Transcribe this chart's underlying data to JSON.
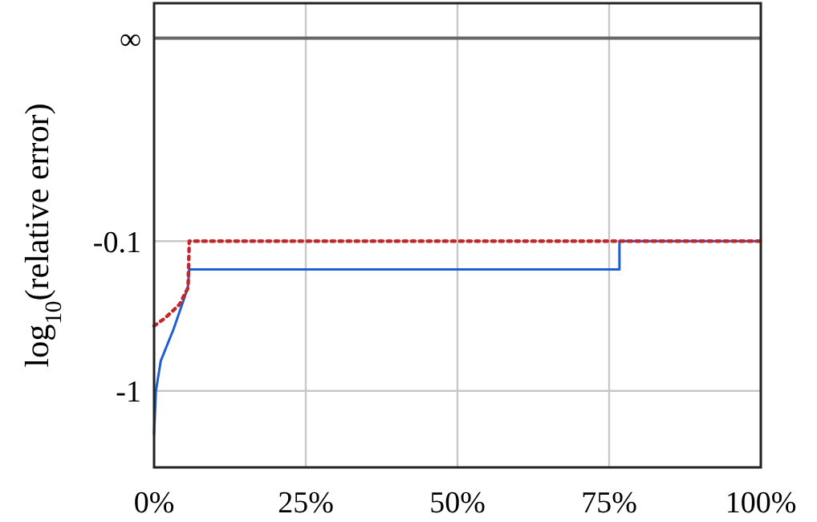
{
  "chart_data": {
    "type": "line",
    "ylabel": "log$_{10}$(relative error)",
    "xlim": [
      0,
      100
    ],
    "ylim": [
      -1.46,
      1.33
    ],
    "xticks": [
      {
        "value": 0,
        "label": "0%"
      },
      {
        "value": 25,
        "label": "25%"
      },
      {
        "value": 50,
        "label": "50%"
      },
      {
        "value": 75,
        "label": "75%"
      },
      {
        "value": 100,
        "label": "100%"
      }
    ],
    "yticks": [
      {
        "value": -1,
        "label": "-1"
      },
      {
        "value": -0.1,
        "label": "-0.1"
      },
      {
        "value": 1.12,
        "label": "∞"
      }
    ],
    "grid": true,
    "ref_lines": [
      {
        "axis": "y",
        "value": 1.12,
        "color": "#666666"
      }
    ],
    "series": [
      {
        "color": "#1f5fd6",
        "line_style": "solid",
        "x": [
          0,
          0.3,
          1.1,
          3.2,
          5.0,
          5.6,
          5.8,
          76.7,
          76.7,
          100
        ],
        "values": [
          -1.26,
          -1,
          -0.82,
          -0.63,
          -0.44,
          -0.37,
          -0.27,
          -0.27,
          -0.1,
          -0.1
        ]
      },
      {
        "color": "#c0282a",
        "line_style": "dotted",
        "x": [
          0,
          1.9,
          4.2,
          5.6,
          5.8,
          100
        ],
        "values": [
          -0.61,
          -0.56,
          -0.48,
          -0.38,
          -0.1,
          -0.1
        ]
      }
    ]
  }
}
